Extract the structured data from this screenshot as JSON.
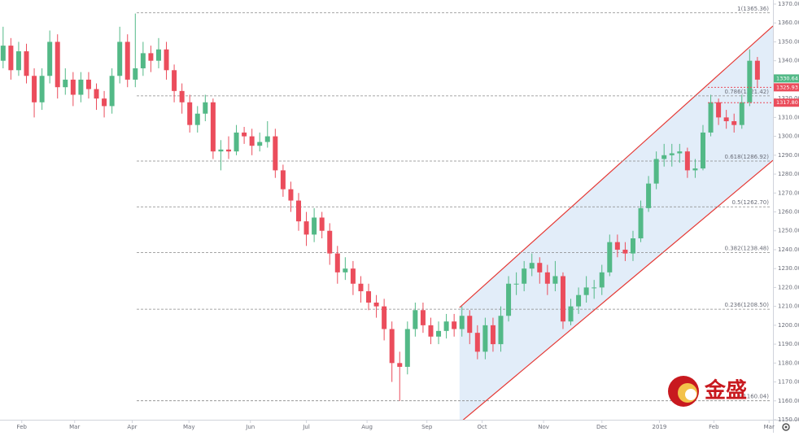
{
  "chart_data": {
    "type": "candlestick",
    "open": [
      1340,
      1348,
      1335,
      1345,
      1332,
      1318,
      1332,
      1350,
      1326,
      1330,
      1322,
      1330,
      1325,
      1320,
      1316,
      1332,
      1350,
      1330,
      1336,
      1344,
      1340,
      1346,
      1335,
      1324,
      1318,
      1306,
      1312,
      1318,
      1292,
      1293,
      1292,
      1302,
      1300,
      1295,
      1297,
      1300,
      1282,
      1272,
      1266,
      1255,
      1248,
      1257,
      1250,
      1238,
      1228,
      1230,
      1222,
      1218,
      1212,
      1210,
      1198,
      1180,
      1178,
      1198,
      1208,
      1200,
      1194,
      1197,
      1202,
      1198,
      1205,
      1196,
      1186,
      1200,
      1190,
      1205,
      1222,
      1222,
      1230,
      1233,
      1228,
      1222,
      1226,
      1202,
      1210,
      1216,
      1220,
      1220,
      1228,
      1244,
      1240,
      1238,
      1246,
      1262,
      1275,
      1288,
      1290,
      1291,
      1292,
      1282,
      1283,
      1302,
      1318,
      1310,
      1308,
      1306,
      1318,
      1340
    ],
    "high": [
      1358,
      1352,
      1350,
      1349,
      1336,
      1336,
      1356,
      1354,
      1336,
      1334,
      1334,
      1334,
      1328,
      1324,
      1336,
      1358,
      1354,
      1365,
      1350,
      1348,
      1352,
      1350,
      1338,
      1328,
      1322,
      1316,
      1322,
      1320,
      1298,
      1300,
      1306,
      1305,
      1304,
      1302,
      1308,
      1304,
      1285,
      1276,
      1270,
      1260,
      1262,
      1260,
      1254,
      1242,
      1236,
      1234,
      1226,
      1222,
      1216,
      1214,
      1202,
      1186,
      1202,
      1212,
      1212,
      1204,
      1202,
      1206,
      1206,
      1210,
      1208,
      1200,
      1204,
      1204,
      1210,
      1226,
      1228,
      1234,
      1238,
      1236,
      1232,
      1234,
      1228,
      1214,
      1220,
      1226,
      1224,
      1232,
      1248,
      1248,
      1244,
      1250,
      1266,
      1279,
      1292,
      1296,
      1296,
      1296,
      1294,
      1288,
      1306,
      1322,
      1320,
      1314,
      1312,
      1322,
      1346,
      1342
    ],
    "low": [
      1336,
      1330,
      1332,
      1328,
      1310,
      1314,
      1328,
      1320,
      1322,
      1316,
      1318,
      1320,
      1314,
      1310,
      1312,
      1328,
      1326,
      1326,
      1332,
      1334,
      1336,
      1330,
      1318,
      1312,
      1302,
      1302,
      1308,
      1288,
      1282,
      1288,
      1290,
      1296,
      1290,
      1292,
      1294,
      1278,
      1268,
      1260,
      1250,
      1242,
      1244,
      1246,
      1232,
      1222,
      1224,
      1216,
      1212,
      1208,
      1204,
      1192,
      1170,
      1160,
      1174,
      1194,
      1196,
      1190,
      1190,
      1193,
      1194,
      1194,
      1190,
      1182,
      1182,
      1186,
      1186,
      1202,
      1216,
      1218,
      1226,
      1222,
      1216,
      1218,
      1198,
      1200,
      1206,
      1212,
      1214,
      1216,
      1226,
      1236,
      1234,
      1234,
      1244,
      1260,
      1272,
      1284,
      1284,
      1286,
      1278,
      1278,
      1282,
      1300,
      1306,
      1304,
      1302,
      1304,
      1316,
      1326
    ],
    "close": [
      1348,
      1335,
      1345,
      1332,
      1318,
      1332,
      1350,
      1326,
      1330,
      1322,
      1330,
      1325,
      1320,
      1316,
      1332,
      1350,
      1330,
      1336,
      1344,
      1340,
      1346,
      1335,
      1324,
      1318,
      1306,
      1312,
      1318,
      1292,
      1293,
      1292,
      1302,
      1300,
      1295,
      1297,
      1300,
      1282,
      1272,
      1266,
      1255,
      1248,
      1257,
      1250,
      1238,
      1228,
      1230,
      1222,
      1218,
      1212,
      1210,
      1198,
      1180,
      1178,
      1198,
      1208,
      1200,
      1194,
      1197,
      1202,
      1198,
      1205,
      1196,
      1186,
      1200,
      1190,
      1205,
      1222,
      1222,
      1230,
      1233,
      1228,
      1222,
      1226,
      1202,
      1210,
      1216,
      1220,
      1220,
      1228,
      1244,
      1240,
      1238,
      1246,
      1262,
      1275,
      1288,
      1290,
      1291,
      1292,
      1282,
      1283,
      1302,
      1318,
      1310,
      1308,
      1306,
      1318,
      1340,
      1330
    ],
    "up_color": "#53b987",
    "down_color": "#eb4d5c",
    "xlim": [
      -0.4,
      99
    ],
    "xticks": [
      {
        "value": 2.4,
        "label": "Feb"
      },
      {
        "value": 9.2,
        "label": "Mar"
      },
      {
        "value": 16.6,
        "label": "Apr"
      },
      {
        "value": 23.9,
        "label": "May"
      },
      {
        "value": 31.8,
        "label": "Jun"
      },
      {
        "value": 39.0,
        "label": "Jul"
      },
      {
        "value": 46.8,
        "label": "Aug"
      },
      {
        "value": 54.5,
        "label": "Sep"
      },
      {
        "value": 61.6,
        "label": "Oct"
      },
      {
        "value": 69.5,
        "label": "Nov"
      },
      {
        "value": 77.0,
        "label": "Dec"
      },
      {
        "value": 84.4,
        "label": "2019"
      },
      {
        "value": 91.4,
        "label": "Feb"
      },
      {
        "value": 98.5,
        "label": "Mar"
      }
    ],
    "ylim": [
      1150,
      1370
    ],
    "yticks": [
      {
        "value": 1150,
        "label": "1150.00"
      },
      {
        "value": 1160,
        "label": "1160.00"
      },
      {
        "value": 1170,
        "label": "1170.00"
      },
      {
        "value": 1180,
        "label": "1180.00"
      },
      {
        "value": 1190,
        "label": "1190.00"
      },
      {
        "value": 1200,
        "label": "1200.00"
      },
      {
        "value": 1210,
        "label": "1210.00"
      },
      {
        "value": 1220,
        "label": "1220.00"
      },
      {
        "value": 1230,
        "label": "1230.00"
      },
      {
        "value": 1240,
        "label": "1240.00"
      },
      {
        "value": 1250,
        "label": "1250.00"
      },
      {
        "value": 1260,
        "label": "1260.00"
      },
      {
        "value": 1270,
        "label": "1270.00"
      },
      {
        "value": 1280,
        "label": "1280.00"
      },
      {
        "value": 1290,
        "label": "1290.00"
      },
      {
        "value": 1300,
        "label": "1300.00"
      },
      {
        "value": 1310,
        "label": "1310.00"
      },
      {
        "value": 1320,
        "label": "1320.00"
      },
      {
        "value": 1330,
        "label": "1330.00"
      },
      {
        "value": 1340,
        "label": "1340.00"
      },
      {
        "value": 1350,
        "label": "1350.00"
      },
      {
        "value": 1360,
        "label": "1360.00"
      },
      {
        "value": 1370,
        "label": "1370.00"
      }
    ],
    "fib_levels": [
      {
        "value": 1365.36,
        "label": "1(1365.36)"
      },
      {
        "value": 1321.42,
        "label": "0.786(1321.42)"
      },
      {
        "value": 1286.92,
        "label": "0.618(1286.92)"
      },
      {
        "value": 1262.7,
        "label": "0.5(1262.70)"
      },
      {
        "value": 1238.48,
        "label": "0.382(1238.48)"
      },
      {
        "value": 1208.5,
        "label": "0.236(1208.50)"
      },
      {
        "value": 1160.04,
        "label": "0(1160.04)"
      }
    ],
    "channel": {
      "x": [
        58.7,
        99
      ],
      "upper": [
        1209.4,
        1358.4
      ],
      "lower": [
        1148.3,
        1287.3
      ],
      "color": "#e53935",
      "fill": "#dbe8f7"
    },
    "price_markers": [
      {
        "value": 1330.64,
        "label": "1330.64",
        "color": "#53b987"
      },
      {
        "value": 1325.93,
        "label": "1325.93",
        "color": "#eb4d5c"
      },
      {
        "value": 1317.8,
        "label": "1317.80",
        "color": "#eb4d5c"
      }
    ]
  },
  "logo": {
    "text": "金盛"
  }
}
